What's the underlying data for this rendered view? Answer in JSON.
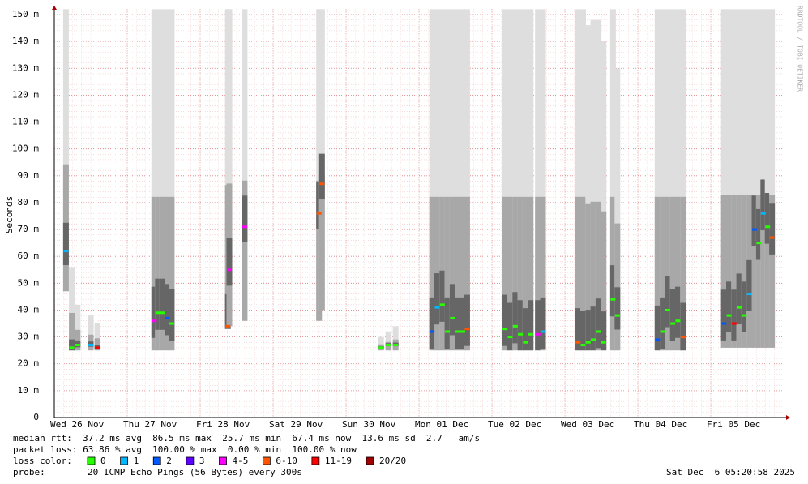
{
  "chart_data": {
    "type": "smoke",
    "y_label": "Seconds",
    "side_text": "RRDTOOL / TOBI OETIKER",
    "xlim": [
      0,
      10
    ],
    "xticks": [
      {
        "value": 0,
        "label": "Wed 26 Nov"
      },
      {
        "value": 1,
        "label": "Thu 27 Nov"
      },
      {
        "value": 2,
        "label": "Fri 28 Nov"
      },
      {
        "value": 3,
        "label": "Sat 29 Nov"
      },
      {
        "value": 4,
        "label": "Sun 30 Nov"
      },
      {
        "value": 5,
        "label": "Mon 01 Dec"
      },
      {
        "value": 6,
        "label": "Tue 02 Dec"
      },
      {
        "value": 7,
        "label": "Wed 03 Dec"
      },
      {
        "value": 8,
        "label": "Thu 04 Dec"
      },
      {
        "value": 9,
        "label": "Fri 05 Dec"
      }
    ],
    "ylim": [
      0,
      0.152
    ],
    "yticks": [
      0,
      {
        "value": 0.01,
        "label": "10 m"
      },
      {
        "value": 0.02,
        "label": "20 m"
      },
      {
        "value": 0.03,
        "label": "30 m"
      },
      {
        "value": 0.04,
        "label": "40 m"
      },
      {
        "value": 0.05,
        "label": "50 m"
      },
      {
        "value": 0.06,
        "label": "60 m"
      },
      {
        "value": 0.07,
        "label": "70 m"
      },
      {
        "value": 0.08,
        "label": "80 m"
      },
      {
        "value": 0.09,
        "label": "90 m"
      },
      {
        "value": 0.1,
        "label": "100 m"
      },
      {
        "value": 0.11,
        "label": "110 m"
      },
      {
        "value": 0.12,
        "label": "120 m"
      },
      {
        "value": 0.13,
        "label": "130 m"
      },
      {
        "value": 0.14,
        "label": "140 m"
      },
      {
        "value": 0.15,
        "label": "150 m"
      }
    ],
    "grid": true,
    "minor_ygrid_step": 0.002,
    "minor_xgrid_step": 0.125,
    "samples": {
      "x": [
        0.16,
        0.24,
        0.32,
        0.5,
        0.59,
        1.37,
        1.42,
        1.48,
        1.55,
        1.61,
        2.38,
        2.4,
        2.61,
        3.63,
        3.67,
        4.48,
        4.58,
        4.68,
        5.18,
        5.25,
        5.32,
        5.39,
        5.46,
        5.53,
        5.6,
        5.66,
        6.18,
        6.25,
        6.32,
        6.39,
        6.46,
        6.53,
        6.63,
        6.7,
        7.18,
        7.25,
        7.32,
        7.39,
        7.46,
        7.53,
        7.66,
        7.72,
        8.27,
        8.34,
        8.41,
        8.48,
        8.55,
        8.62,
        9.18,
        9.25,
        9.32,
        9.39,
        9.46,
        9.53,
        9.6,
        9.66,
        9.72,
        9.78,
        9.84
      ],
      "median": [
        0.062,
        0.026,
        0.027,
        0.027,
        0.026,
        0.036,
        0.039,
        0.039,
        0.037,
        0.035,
        0.034,
        0.055,
        0.071,
        0.076,
        0.087,
        0.026,
        0.027,
        0.027,
        0.032,
        0.041,
        0.042,
        0.032,
        0.037,
        0.032,
        0.032,
        0.033,
        0.033,
        0.03,
        0.034,
        0.031,
        0.028,
        0.031,
        0.031,
        0.032,
        0.028,
        0.027,
        0.028,
        0.029,
        0.032,
        0.028,
        0.044,
        0.038,
        0.029,
        0.032,
        0.04,
        0.035,
        0.036,
        0.03,
        0.035,
        0.038,
        0.035,
        0.041,
        0.038,
        0.046,
        0.07,
        0.065,
        0.076,
        0.071,
        0.067
      ],
      "smoke_low": [
        0.047,
        0.025,
        0.025,
        0.025,
        0.025,
        0.025,
        0.025,
        0.025,
        0.025,
        0.025,
        0.033,
        0.034,
        0.036,
        0.036,
        0.04,
        0.025,
        0.025,
        0.025,
        0.025,
        0.025,
        0.025,
        0.025,
        0.025,
        0.025,
        0.025,
        0.025,
        0.025,
        0.025,
        0.025,
        0.025,
        0.025,
        0.025,
        0.025,
        0.025,
        0.025,
        0.025,
        0.025,
        0.025,
        0.025,
        0.025,
        0.025,
        0.025,
        0.025,
        0.025,
        0.025,
        0.025,
        0.025,
        0.025,
        0.026,
        0.026,
        0.026,
        0.026,
        0.026,
        0.026,
        0.026,
        0.026,
        0.026,
        0.026,
        0.026
      ],
      "smoke_high": [
        0.152,
        0.056,
        0.042,
        0.038,
        0.035,
        0.152,
        0.152,
        0.152,
        0.152,
        0.152,
        0.152,
        0.152,
        0.152,
        0.152,
        0.152,
        0.03,
        0.032,
        0.034,
        0.152,
        0.152,
        0.152,
        0.152,
        0.152,
        0.152,
        0.152,
        0.152,
        0.152,
        0.152,
        0.152,
        0.152,
        0.152,
        0.152,
        0.152,
        0.152,
        0.152,
        0.152,
        0.146,
        0.148,
        0.148,
        0.14,
        0.152,
        0.13,
        0.152,
        0.152,
        0.152,
        0.152,
        0.152,
        0.152,
        0.152,
        0.152,
        0.152,
        0.152,
        0.152,
        0.152,
        0.152,
        0.152,
        0.152,
        0.152,
        0.152
      ],
      "loss": [
        1,
        0,
        0,
        1,
        6,
        4,
        0,
        0,
        2,
        0,
        5,
        4,
        4,
        5,
        5,
        0,
        0,
        0,
        2,
        1,
        0,
        0,
        0,
        0,
        0,
        5,
        0,
        0,
        0,
        0,
        0,
        0,
        4,
        1,
        5,
        0,
        0,
        0,
        0,
        0,
        0,
        0,
        2,
        0,
        0,
        0,
        0,
        5,
        2,
        0,
        6,
        0,
        0,
        1,
        2,
        0,
        1,
        0,
        5
      ]
    },
    "stats": [
      "median rtt:  37.2 ms avg  86.5 ms max  25.7 ms min  67.4 ms now  13.6 ms sd  2.7   am/s",
      "packet loss: 63.86 % avg  100.00 % max  0.00 % min  100.00 % now"
    ],
    "loss_legend": {
      "label": "loss color:",
      "entries": [
        {
          "name": "0",
          "color": "#26ff00"
        },
        {
          "name": "1",
          "color": "#00b8ff"
        },
        {
          "name": "2",
          "color": "#0059ff"
        },
        {
          "name": "3",
          "color": "#5e00ff"
        },
        {
          "name": "4-5",
          "color": "#ff00fe"
        },
        {
          "name": "6-10",
          "color": "#ff5500"
        },
        {
          "name": "11-19",
          "color": "#ff0000"
        },
        {
          "name": "20/20",
          "color": "#a10000"
        }
      ]
    },
    "probe": {
      "label": "probe:",
      "text": "20 ICMP Echo Pings (56 Bytes) every 300s"
    },
    "timestamp": "Sat Dec  6 05:20:58 2025"
  }
}
